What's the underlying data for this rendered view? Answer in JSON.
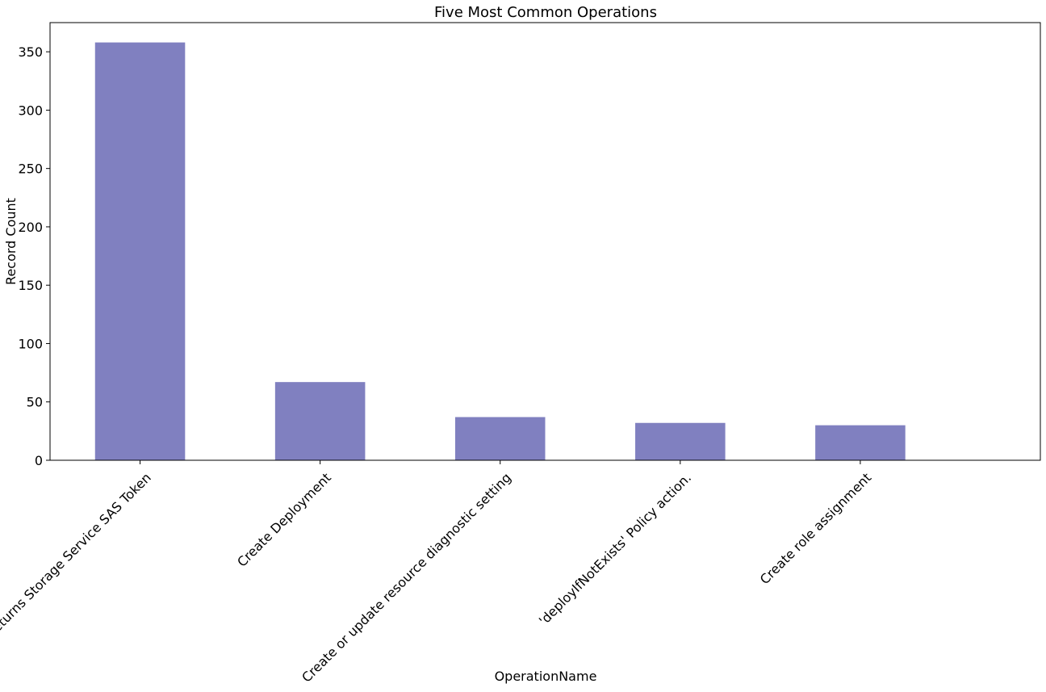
{
  "chart_data": {
    "type": "bar",
    "title": "Five Most Common Operations",
    "xlabel": "OperationName",
    "ylabel": "Record Count",
    "categories": [
      "Returns Storage Service SAS Token",
      "Create Deployment",
      "Create or update resource diagnostic setting",
      "'deployIfNotExists' Policy action.",
      "Create role assignment"
    ],
    "values": [
      358,
      67,
      37,
      32,
      30
    ],
    "ylim": [
      0,
      375
    ],
    "yticks": [
      0,
      50,
      100,
      150,
      200,
      250,
      300,
      350
    ],
    "grid": false,
    "legend": "none",
    "bar_color": "#8080c0"
  }
}
